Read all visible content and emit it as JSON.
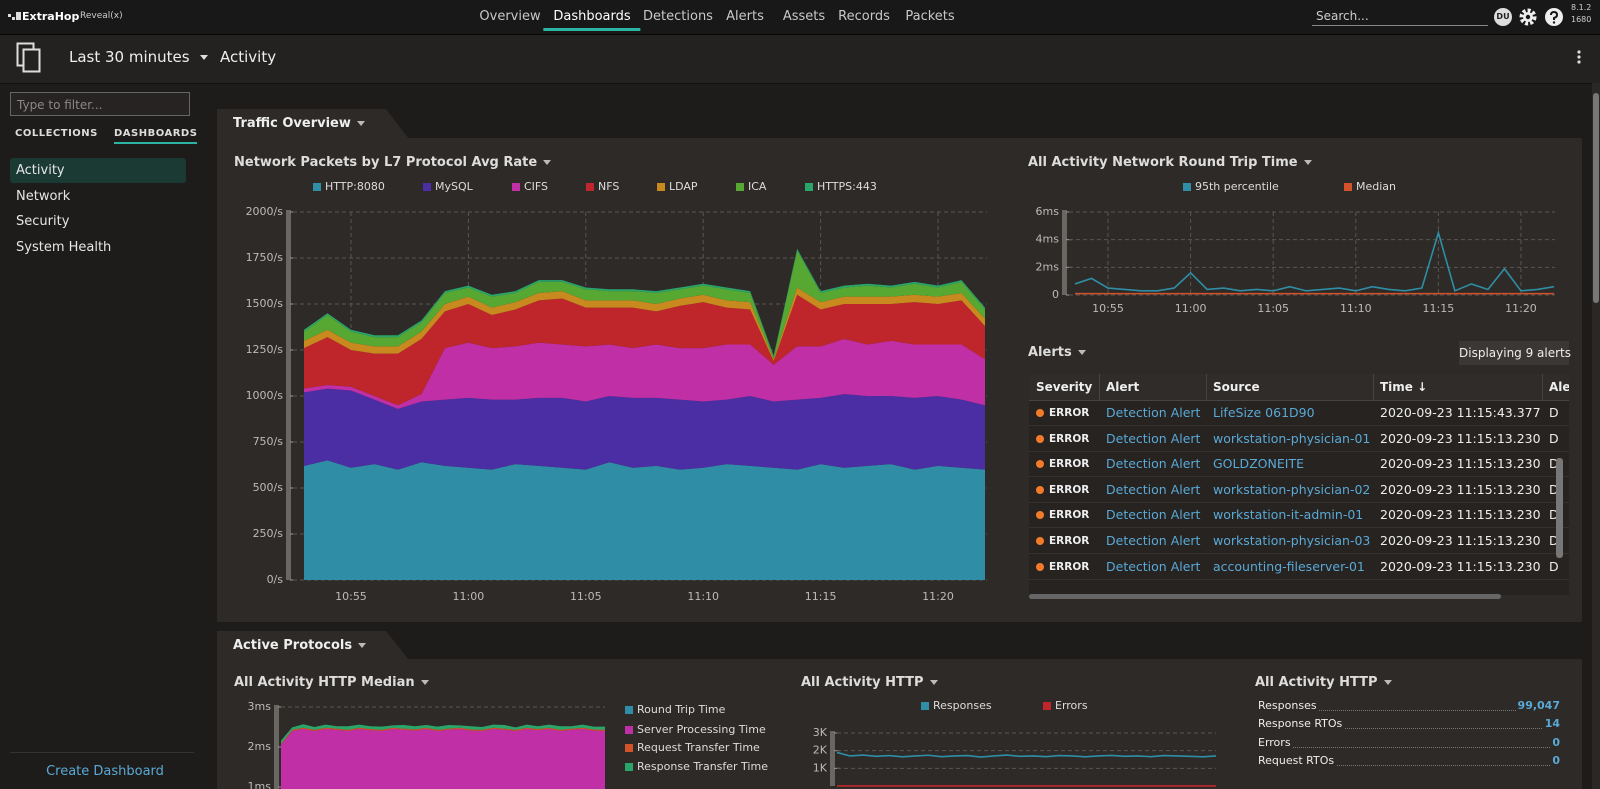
{
  "nav": {
    "brand": "ExtraHop",
    "product": "Reveal(x)",
    "items": [
      "Overview",
      "Dashboards",
      "Detections",
      "Alerts",
      "Assets",
      "Records",
      "Packets"
    ],
    "active": 1,
    "search_placeholder": "Search...",
    "user": "DU",
    "version": "8.1.2",
    "build": "1680"
  },
  "toolbar": {
    "time_range": "Last 30 minutes",
    "dashboard": "Activity"
  },
  "sidebar": {
    "filter_placeholder": "Type to filter...",
    "tabs": [
      "COLLECTIONS",
      "DASHBOARDS"
    ],
    "active_tab": 1,
    "items": [
      "Activity",
      "Network",
      "Security",
      "System Health"
    ],
    "active": 0,
    "create": "Create Dashboard"
  },
  "regions": [
    {
      "title": "Traffic Overview"
    },
    {
      "title": "Active Protocols"
    }
  ],
  "charts": [
    {
      "type": "stacked_area",
      "title": "Network Packets by L7 Protocol Avg Rate",
      "grid": true,
      "x": [
        "10:53",
        "10:54",
        "10:55",
        "10:56",
        "10:57",
        "10:58",
        "10:59",
        "11:00",
        "11:01",
        "11:02",
        "11:03",
        "11:04",
        "11:05",
        "11:06",
        "11:07",
        "11:08",
        "11:09",
        "11:10",
        "11:11",
        "11:12",
        "11:13",
        "11:14",
        "11:15",
        "11:16",
        "11:17",
        "11:18",
        "11:19",
        "11:20",
        "11:21",
        "11:22"
      ],
      "xticks": [
        "10:55",
        "11:00",
        "11:05",
        "11:10",
        "11:15",
        "11:20"
      ],
      "ylim": [
        0,
        2000
      ],
      "yticks": [
        {
          "value": 0,
          "label": "0/s"
        },
        {
          "value": 250,
          "label": "250/s"
        },
        {
          "value": 500,
          "label": "500/s"
        },
        {
          "value": 750,
          "label": "750/s"
        },
        {
          "value": 1000,
          "label": "1000/s"
        },
        {
          "value": 1250,
          "label": "1250/s"
        },
        {
          "value": 1500,
          "label": "1500/s"
        },
        {
          "value": 1750,
          "label": "1750/s"
        },
        {
          "value": 2000,
          "label": "2000/s"
        }
      ],
      "series": [
        {
          "name": "HTTP:8080",
          "color": "#2f8ea6",
          "values": [
            620,
            650,
            610,
            630,
            600,
            640,
            620,
            610,
            600,
            630,
            620,
            610,
            600,
            640,
            610,
            620,
            600,
            610,
            630,
            620,
            610,
            600,
            630,
            610,
            620,
            630,
            600,
            620,
            610,
            600
          ]
        },
        {
          "name": "MySQL",
          "color": "#4b2ea3",
          "values": [
            400,
            390,
            420,
            350,
            330,
            330,
            360,
            380,
            380,
            350,
            370,
            380,
            370,
            360,
            380,
            370,
            380,
            360,
            350,
            380,
            360,
            380,
            360,
            400,
            380,
            370,
            390,
            380,
            370,
            350
          ]
        },
        {
          "name": "CIFS",
          "color": "#c12fa7",
          "values": [
            20,
            20,
            20,
            20,
            20,
            40,
            280,
            300,
            280,
            290,
            300,
            290,
            300,
            280,
            270,
            290,
            280,
            290,
            300,
            280,
            200,
            290,
            280,
            300,
            280,
            300,
            290,
            280,
            300,
            250
          ]
        },
        {
          "name": "NFS",
          "color": "#bf262c",
          "values": [
            220,
            260,
            200,
            230,
            280,
            300,
            200,
            210,
            180,
            200,
            230,
            250,
            210,
            200,
            220,
            180,
            230,
            250,
            200,
            190,
            20,
            280,
            200,
            190,
            220,
            200,
            230,
            220,
            240,
            180
          ]
        },
        {
          "name": "LDAP",
          "color": "#c8891e",
          "values": [
            40,
            40,
            40,
            40,
            40,
            40,
            40,
            40,
            40,
            40,
            40,
            40,
            40,
            40,
            40,
            40,
            40,
            40,
            40,
            40,
            10,
            40,
            40,
            40,
            40,
            40,
            40,
            40,
            40,
            40
          ]
        },
        {
          "name": "ICA",
          "color": "#57a733",
          "values": [
            50,
            80,
            60,
            50,
            50,
            50,
            60,
            50,
            60,
            50,
            60,
            50,
            60,
            50,
            50,
            60,
            50,
            50,
            60,
            50,
            10,
            200,
            50,
            50,
            60,
            50,
            60,
            50,
            60,
            50
          ]
        },
        {
          "name": "HTTPS:443",
          "color": "#2aa66b",
          "values": [
            10,
            10,
            10,
            10,
            10,
            10,
            10,
            10,
            10,
            10,
            10,
            10,
            10,
            10,
            10,
            10,
            10,
            10,
            10,
            10,
            10,
            10,
            10,
            10,
            10,
            10,
            10,
            10,
            10,
            10
          ]
        }
      ]
    },
    {
      "type": "line",
      "title": "All Activity Network Round Trip Time",
      "grid": true,
      "x": [
        "10:53",
        "10:54",
        "10:55",
        "10:56",
        "10:57",
        "10:58",
        "10:59",
        "11:00",
        "11:01",
        "11:02",
        "11:03",
        "11:04",
        "11:05",
        "11:06",
        "11:07",
        "11:08",
        "11:09",
        "11:10",
        "11:11",
        "11:12",
        "11:13",
        "11:14",
        "11:15",
        "11:16",
        "11:17",
        "11:18",
        "11:19",
        "11:20",
        "11:21",
        "11:22"
      ],
      "xticks": [
        "10:55",
        "11:00",
        "11:05",
        "11:10",
        "11:15",
        "11:20"
      ],
      "ylim": [
        0,
        6
      ],
      "yticks": [
        0,
        {
          "value": 2,
          "label": "2ms"
        },
        {
          "value": 4,
          "label": "4ms"
        },
        {
          "value": 6,
          "label": "6ms"
        }
      ],
      "series": [
        {
          "name": "95th percentile",
          "color": "#2f8ea6",
          "values": [
            0.8,
            1.2,
            0.5,
            0.4,
            0.3,
            0.3,
            0.5,
            1.6,
            0.4,
            0.5,
            0.3,
            0.4,
            0.3,
            0.6,
            0.3,
            0.4,
            0.5,
            0.3,
            0.6,
            0.4,
            0.3,
            0.5,
            4.5,
            0.3,
            0.8,
            0.4,
            1.9,
            0.3,
            0.4,
            0.6
          ]
        },
        {
          "name": "Median",
          "color": "#d2532b",
          "values": [
            0.1,
            0.1,
            0.1,
            0.1,
            0.1,
            0.1,
            0.1,
            0.1,
            0.1,
            0.1,
            0.1,
            0.1,
            0.1,
            0.1,
            0.1,
            0.1,
            0.1,
            0.1,
            0.1,
            0.1,
            0.1,
            0.1,
            0.1,
            0.1,
            0.1,
            0.1,
            0.1,
            0.1,
            0.1,
            0.1
          ]
        }
      ]
    },
    {
      "type": "stacked_area",
      "title": "All Activity HTTP Median",
      "grid": true,
      "ylim": [
        0,
        3
      ],
      "yticks": [
        {
          "value": 1,
          "label": "1ms"
        },
        {
          "value": 2,
          "label": "2ms"
        },
        {
          "value": 3,
          "label": "3ms"
        }
      ],
      "series": [
        {
          "name": "Round Trip Time",
          "color": "#2f8ea6",
          "values": [
            0.15,
            0.15,
            0.15,
            0.15,
            0.15,
            0.15,
            0.15,
            0.15,
            0.15,
            0.15,
            0.15,
            0.15,
            0.15,
            0.15,
            0.15,
            0.15,
            0.15,
            0.15,
            0.15,
            0.15,
            0.15,
            0.15,
            0.15,
            0.15,
            0.15,
            0.15,
            0.15,
            0.15,
            0.15,
            0.15
          ]
        },
        {
          "name": "Server Processing Time",
          "color": "#c12fa7",
          "values": [
            1.9,
            2.25,
            2.3,
            2.25,
            2.3,
            2.28,
            2.25,
            2.3,
            2.27,
            2.25,
            2.3,
            2.28,
            2.26,
            2.3,
            2.25,
            2.28,
            2.3,
            2.26,
            2.25,
            2.3,
            2.28,
            2.25,
            2.3,
            2.27,
            2.3,
            2.25,
            2.28,
            2.3,
            2.26,
            2.25
          ]
        },
        {
          "name": "Request Transfer Time",
          "color": "#d2532b",
          "values": [
            0.03,
            0.03,
            0.03,
            0.03,
            0.03,
            0.03,
            0.03,
            0.03,
            0.03,
            0.03,
            0.03,
            0.03,
            0.03,
            0.03,
            0.03,
            0.03,
            0.03,
            0.03,
            0.03,
            0.03,
            0.03,
            0.03,
            0.03,
            0.03,
            0.03,
            0.03,
            0.03,
            0.03,
            0.03,
            0.03
          ]
        },
        {
          "name": "Response Transfer Time",
          "color": "#2aa66b",
          "values": [
            0.08,
            0.06,
            0.09,
            0.07,
            0.08,
            0.06,
            0.09,
            0.08,
            0.07,
            0.08,
            0.06,
            0.09,
            0.08,
            0.07,
            0.08,
            0.09,
            0.06,
            0.08,
            0.07,
            0.08,
            0.09,
            0.06,
            0.08,
            0.07,
            0.08,
            0.09,
            0.06,
            0.08,
            0.07,
            0.08
          ]
        }
      ]
    },
    {
      "type": "line",
      "title": "All Activity HTTP",
      "grid": true,
      "ylim": [
        0,
        3000
      ],
      "yticks": [
        {
          "value": 1000,
          "label": "1K"
        },
        {
          "value": 2000,
          "label": "2K"
        },
        {
          "value": 3000,
          "label": "3K"
        }
      ],
      "series": [
        {
          "name": "Responses",
          "color": "#2f8ea6",
          "values": [
            1900,
            1700,
            1750,
            1680,
            1720,
            1650,
            1700,
            1740,
            1660,
            1700,
            1720,
            1640,
            1700,
            1750,
            1680,
            1700,
            1660,
            1720,
            1700,
            1650,
            1700,
            1730,
            1680,
            1700,
            1660,
            1720,
            1700,
            1680,
            1650,
            1700
          ]
        },
        {
          "name": "Errors",
          "color": "#bf262c",
          "values": [
            5,
            5,
            5,
            5,
            5,
            5,
            5,
            5,
            5,
            5,
            5,
            5,
            5,
            5,
            5,
            5,
            5,
            5,
            5,
            5,
            5,
            5,
            5,
            5,
            5,
            5,
            5,
            5,
            5,
            5
          ]
        }
      ]
    }
  ],
  "alerts": {
    "title": "Alerts",
    "count": "Displaying 9 alerts",
    "columns": [
      "Severity",
      "Alert",
      "Source",
      "Time ↓",
      "Ale"
    ],
    "rows": [
      [
        "ERROR",
        "Detection Alert",
        "LifeSize 061D90",
        "2020-09-23 11:15:43.377",
        "D"
      ],
      [
        "ERROR",
        "Detection Alert",
        "workstation-physician-01",
        "2020-09-23 11:15:13.230",
        "D"
      ],
      [
        "ERROR",
        "Detection Alert",
        "GOLDZONEITE",
        "2020-09-23 11:15:13.230",
        "D"
      ],
      [
        "ERROR",
        "Detection Alert",
        "workstation-physician-02",
        "2020-09-23 11:15:13.230",
        "D"
      ],
      [
        "ERROR",
        "Detection Alert",
        "workstation-it-admin-01",
        "2020-09-23 11:15:13.230",
        "D"
      ],
      [
        "ERROR",
        "Detection Alert",
        "workstation-physician-03",
        "2020-09-23 11:15:13.230",
        "D"
      ],
      [
        "ERROR",
        "Detection Alert",
        "accounting-fileserver-01",
        "2020-09-23 11:15:13.230",
        "D"
      ]
    ]
  },
  "http_stats": {
    "title": "All Activity HTTP",
    "rows": [
      {
        "label": "Responses",
        "value": "99,047"
      },
      {
        "label": "Response RTOs",
        "value": "14"
      },
      {
        "label": "Errors",
        "value": "0"
      },
      {
        "label": "Request RTOs",
        "value": "0"
      }
    ]
  }
}
